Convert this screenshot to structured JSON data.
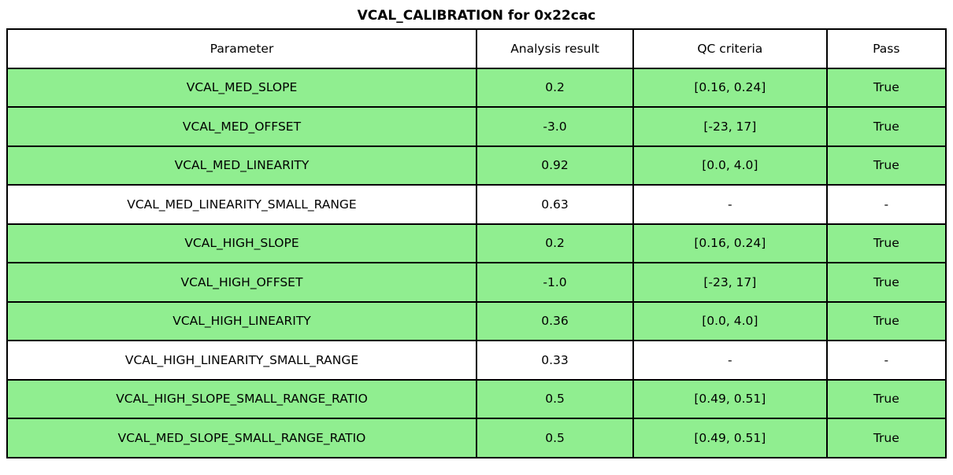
{
  "title": "VCAL_CALIBRATION for 0x22cac",
  "colors": {
    "pass_row": "#90EE90",
    "neutral_row": "#FFFFFF",
    "border": "#000000"
  },
  "chart_data": {
    "type": "table",
    "title": "VCAL_CALIBRATION for 0x22cac",
    "columns": [
      "Parameter",
      "Analysis result",
      "QC criteria",
      "Pass"
    ],
    "rows": [
      [
        "VCAL_MED_SLOPE",
        "0.2",
        "[0.16, 0.24]",
        "True"
      ],
      [
        "VCAL_MED_OFFSET",
        "-3.0",
        "[-23, 17]",
        "True"
      ],
      [
        "VCAL_MED_LINEARITY",
        "0.92",
        "[0.0, 4.0]",
        "True"
      ],
      [
        "VCAL_MED_LINEARITY_SMALL_RANGE",
        "0.63",
        "-",
        "-"
      ],
      [
        "VCAL_HIGH_SLOPE",
        "0.2",
        "[0.16, 0.24]",
        "True"
      ],
      [
        "VCAL_HIGH_OFFSET",
        "-1.0",
        "[-23, 17]",
        "True"
      ],
      [
        "VCAL_HIGH_LINEARITY",
        "0.36",
        "[0.0, 4.0]",
        "True"
      ],
      [
        "VCAL_HIGH_LINEARITY_SMALL_RANGE",
        "0.33",
        "-",
        "-"
      ],
      [
        "VCAL_HIGH_SLOPE_SMALL_RANGE_RATIO",
        "0.5",
        "[0.49, 0.51]",
        "True"
      ],
      [
        "VCAL_MED_SLOPE_SMALL_RANGE_RATIO",
        "0.5",
        "[0.49, 0.51]",
        "True"
      ]
    ],
    "row_pass": [
      true,
      true,
      true,
      false,
      true,
      true,
      true,
      false,
      true,
      true
    ],
    "layout": {
      "grid": true,
      "header_background": "#FFFFFF",
      "pass_row_background": "#90EE90"
    }
  }
}
